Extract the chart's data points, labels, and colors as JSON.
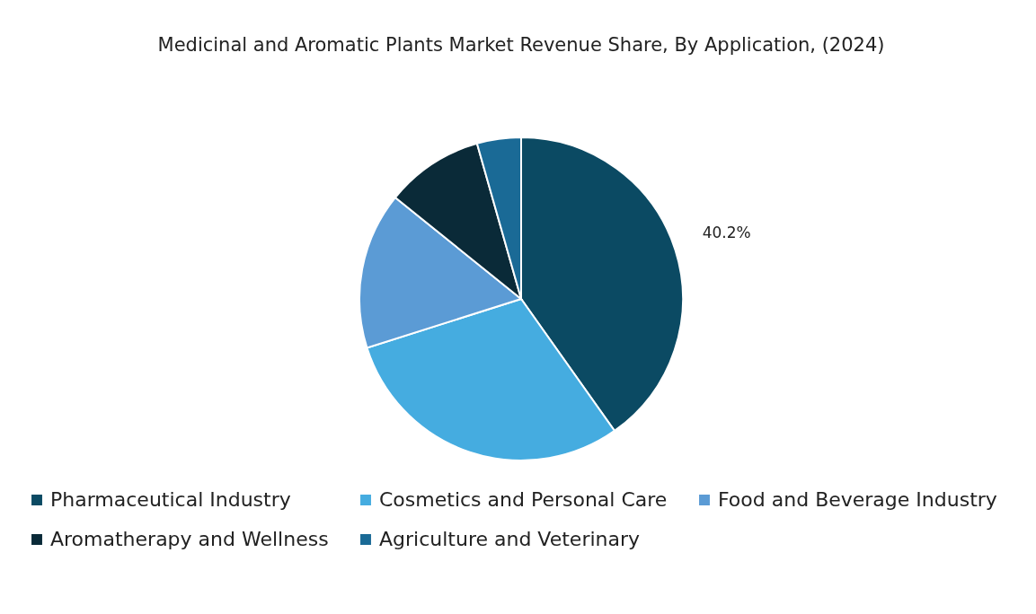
{
  "chart_data": {
    "type": "pie",
    "title": "Medicinal and Aromatic Plants Market Revenue Share, By Application, (2024)",
    "categories": [
      "Pharmaceutical Industry",
      "Cosmetics and Personal Care",
      "Food and Beverage Industry",
      "Aromatherapy and Wellness",
      "Agriculture and Veterinary"
    ],
    "values": [
      40.2,
      29.9,
      15.7,
      9.8,
      4.4
    ],
    "colors": [
      "#0b4a63",
      "#45ace0",
      "#5b9bd5",
      "#0a2a38",
      "#1a6a96"
    ],
    "value_labels": [
      "40.2%",
      null,
      null,
      null,
      null
    ],
    "legend": "bottom"
  }
}
